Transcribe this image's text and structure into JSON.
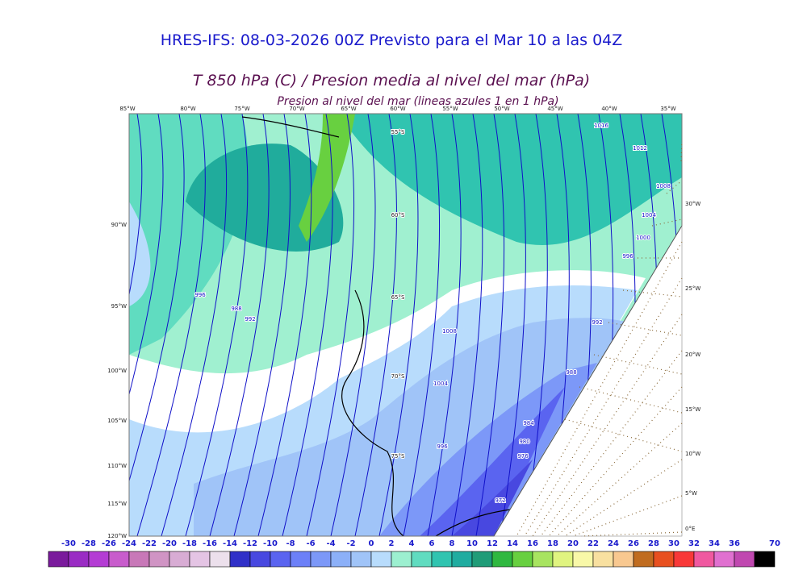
{
  "header": {
    "title": "HRES-IFS: 08-03-2026 00Z Previsto para el Mar 10 a las 04Z",
    "subtitle": "T 850 hPa (C) / Presion media al nivel del mar (hPa)",
    "caption": "Presion al nivel del mar (lineas azules 1 en 1 hPa)"
  },
  "map": {
    "top_labels": [
      "85°W",
      "80°W",
      "75°W",
      "70°W",
      "65°W",
      "60°W",
      "55°W",
      "50°W",
      "45°W",
      "40°W",
      "35°W"
    ],
    "left_labels": [
      "90°W",
      "95°W",
      "100°W",
      "105°W",
      "110°W",
      "115°W",
      "120°W"
    ],
    "right_labels": [
      "30°W",
      "25°W",
      "20°W",
      "15°W",
      "10°W",
      "5°W",
      "0°E"
    ],
    "inner_labels": [
      "55°S",
      "60°S",
      "65°S",
      "70°S",
      "75°S"
    ],
    "contour_labels": [
      "1016",
      "1012",
      "1008",
      "1004",
      "1000",
      "996",
      "1008",
      "1004",
      "992",
      "988",
      "984",
      "980",
      "976",
      "972",
      "996",
      "988",
      "992",
      "996"
    ]
  },
  "colorbar": {
    "labels": [
      "-30",
      "-28",
      "-26",
      "-24",
      "-22",
      "-20",
      "-18",
      "-16",
      "-14",
      "-12",
      "-10",
      "-8",
      "-6",
      "-4",
      "-2",
      "0",
      "2",
      "4",
      "6",
      "8",
      "10",
      "12",
      "14",
      "16",
      "18",
      "20",
      "22",
      "24",
      "26",
      "28",
      "30",
      "32",
      "34",
      "36",
      "70"
    ],
    "colors": [
      "#7a1a9c",
      "#9a2cc4",
      "#b43cd4",
      "#c85ccc",
      "#c878b8",
      "#d094c4",
      "#d8acd4",
      "#e4c4e4",
      "#ece0ec",
      "#3030c8",
      "#4848e0",
      "#5a64f0",
      "#6c80f8",
      "#7c98f8",
      "#8cb0f8",
      "#a0c4f8",
      "#b8dcfc",
      "#9cf0d0",
      "#60dcc0",
      "#30c4b0",
      "#20aca0",
      "#209c78",
      "#30b840",
      "#68d040",
      "#a8e460",
      "#e0f480",
      "#f8f8a8",
      "#f8e0a0",
      "#f8c890",
      "#c06c20",
      "#e85020",
      "#f83838",
      "#f058a0",
      "#e070d0",
      "#c048b0",
      "#000000"
    ]
  }
}
